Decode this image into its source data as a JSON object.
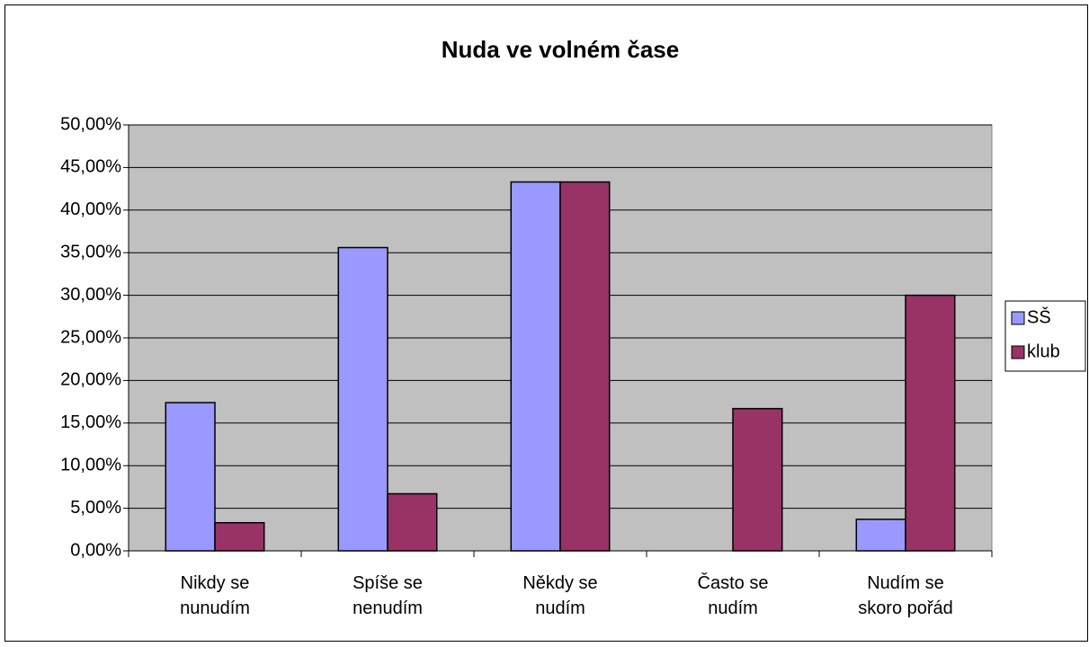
{
  "chart_data": {
    "type": "bar",
    "title": "Nuda ve volném čase",
    "categories": [
      "Nikdy se nunudím",
      "Spíše se nenudím",
      "Někdy se nudím",
      "Často se nudím",
      "Nudím se skoro pořád"
    ],
    "series": [
      {
        "name": "SŠ",
        "color": "#9999ff",
        "values": [
          17.4,
          35.6,
          43.3,
          0,
          3.7
        ]
      },
      {
        "name": "klub",
        "color": "#993366",
        "values": [
          3.3,
          6.7,
          43.3,
          16.7,
          30
        ]
      }
    ],
    "ylim": [
      0,
      50
    ],
    "yticks": [
      {
        "value": 0,
        "label": "0,00%"
      },
      {
        "value": 5,
        "label": "5,00%"
      },
      {
        "value": 10,
        "label": "10,00%"
      },
      {
        "value": 15,
        "label": "15,00%"
      },
      {
        "value": 20,
        "label": "20,00%"
      },
      {
        "value": 25,
        "label": "25,00%"
      },
      {
        "value": 30,
        "label": "30,00%"
      },
      {
        "value": 35,
        "label": "35,00%"
      },
      {
        "value": 40,
        "label": "40,00%"
      },
      {
        "value": 45,
        "label": "45,00%"
      },
      {
        "value": 50,
        "label": "50,00%"
      }
    ],
    "grid": true,
    "legend": "right"
  }
}
